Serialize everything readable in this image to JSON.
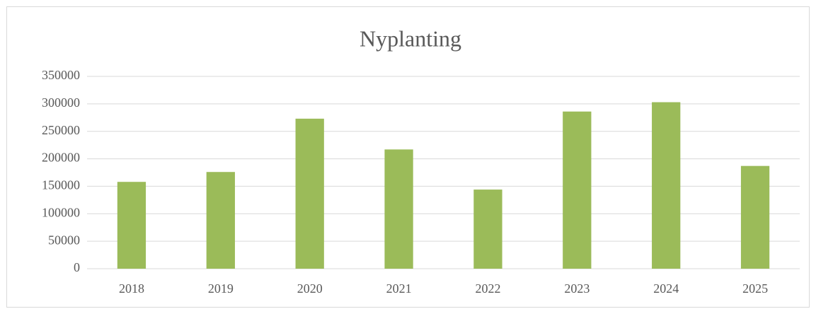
{
  "chart_data": {
    "type": "bar",
    "title": "Nyplanting",
    "categories": [
      "2018",
      "2019",
      "2020",
      "2021",
      "2022",
      "2023",
      "2024",
      "2025"
    ],
    "values": [
      158000,
      176000,
      273000,
      217000,
      144000,
      286000,
      303000,
      187000
    ],
    "color": "#9bbb59",
    "ylim": [
      0,
      350000
    ],
    "yticks": [
      0,
      50000,
      100000,
      150000,
      200000,
      250000,
      300000,
      350000
    ],
    "grid": true
  }
}
